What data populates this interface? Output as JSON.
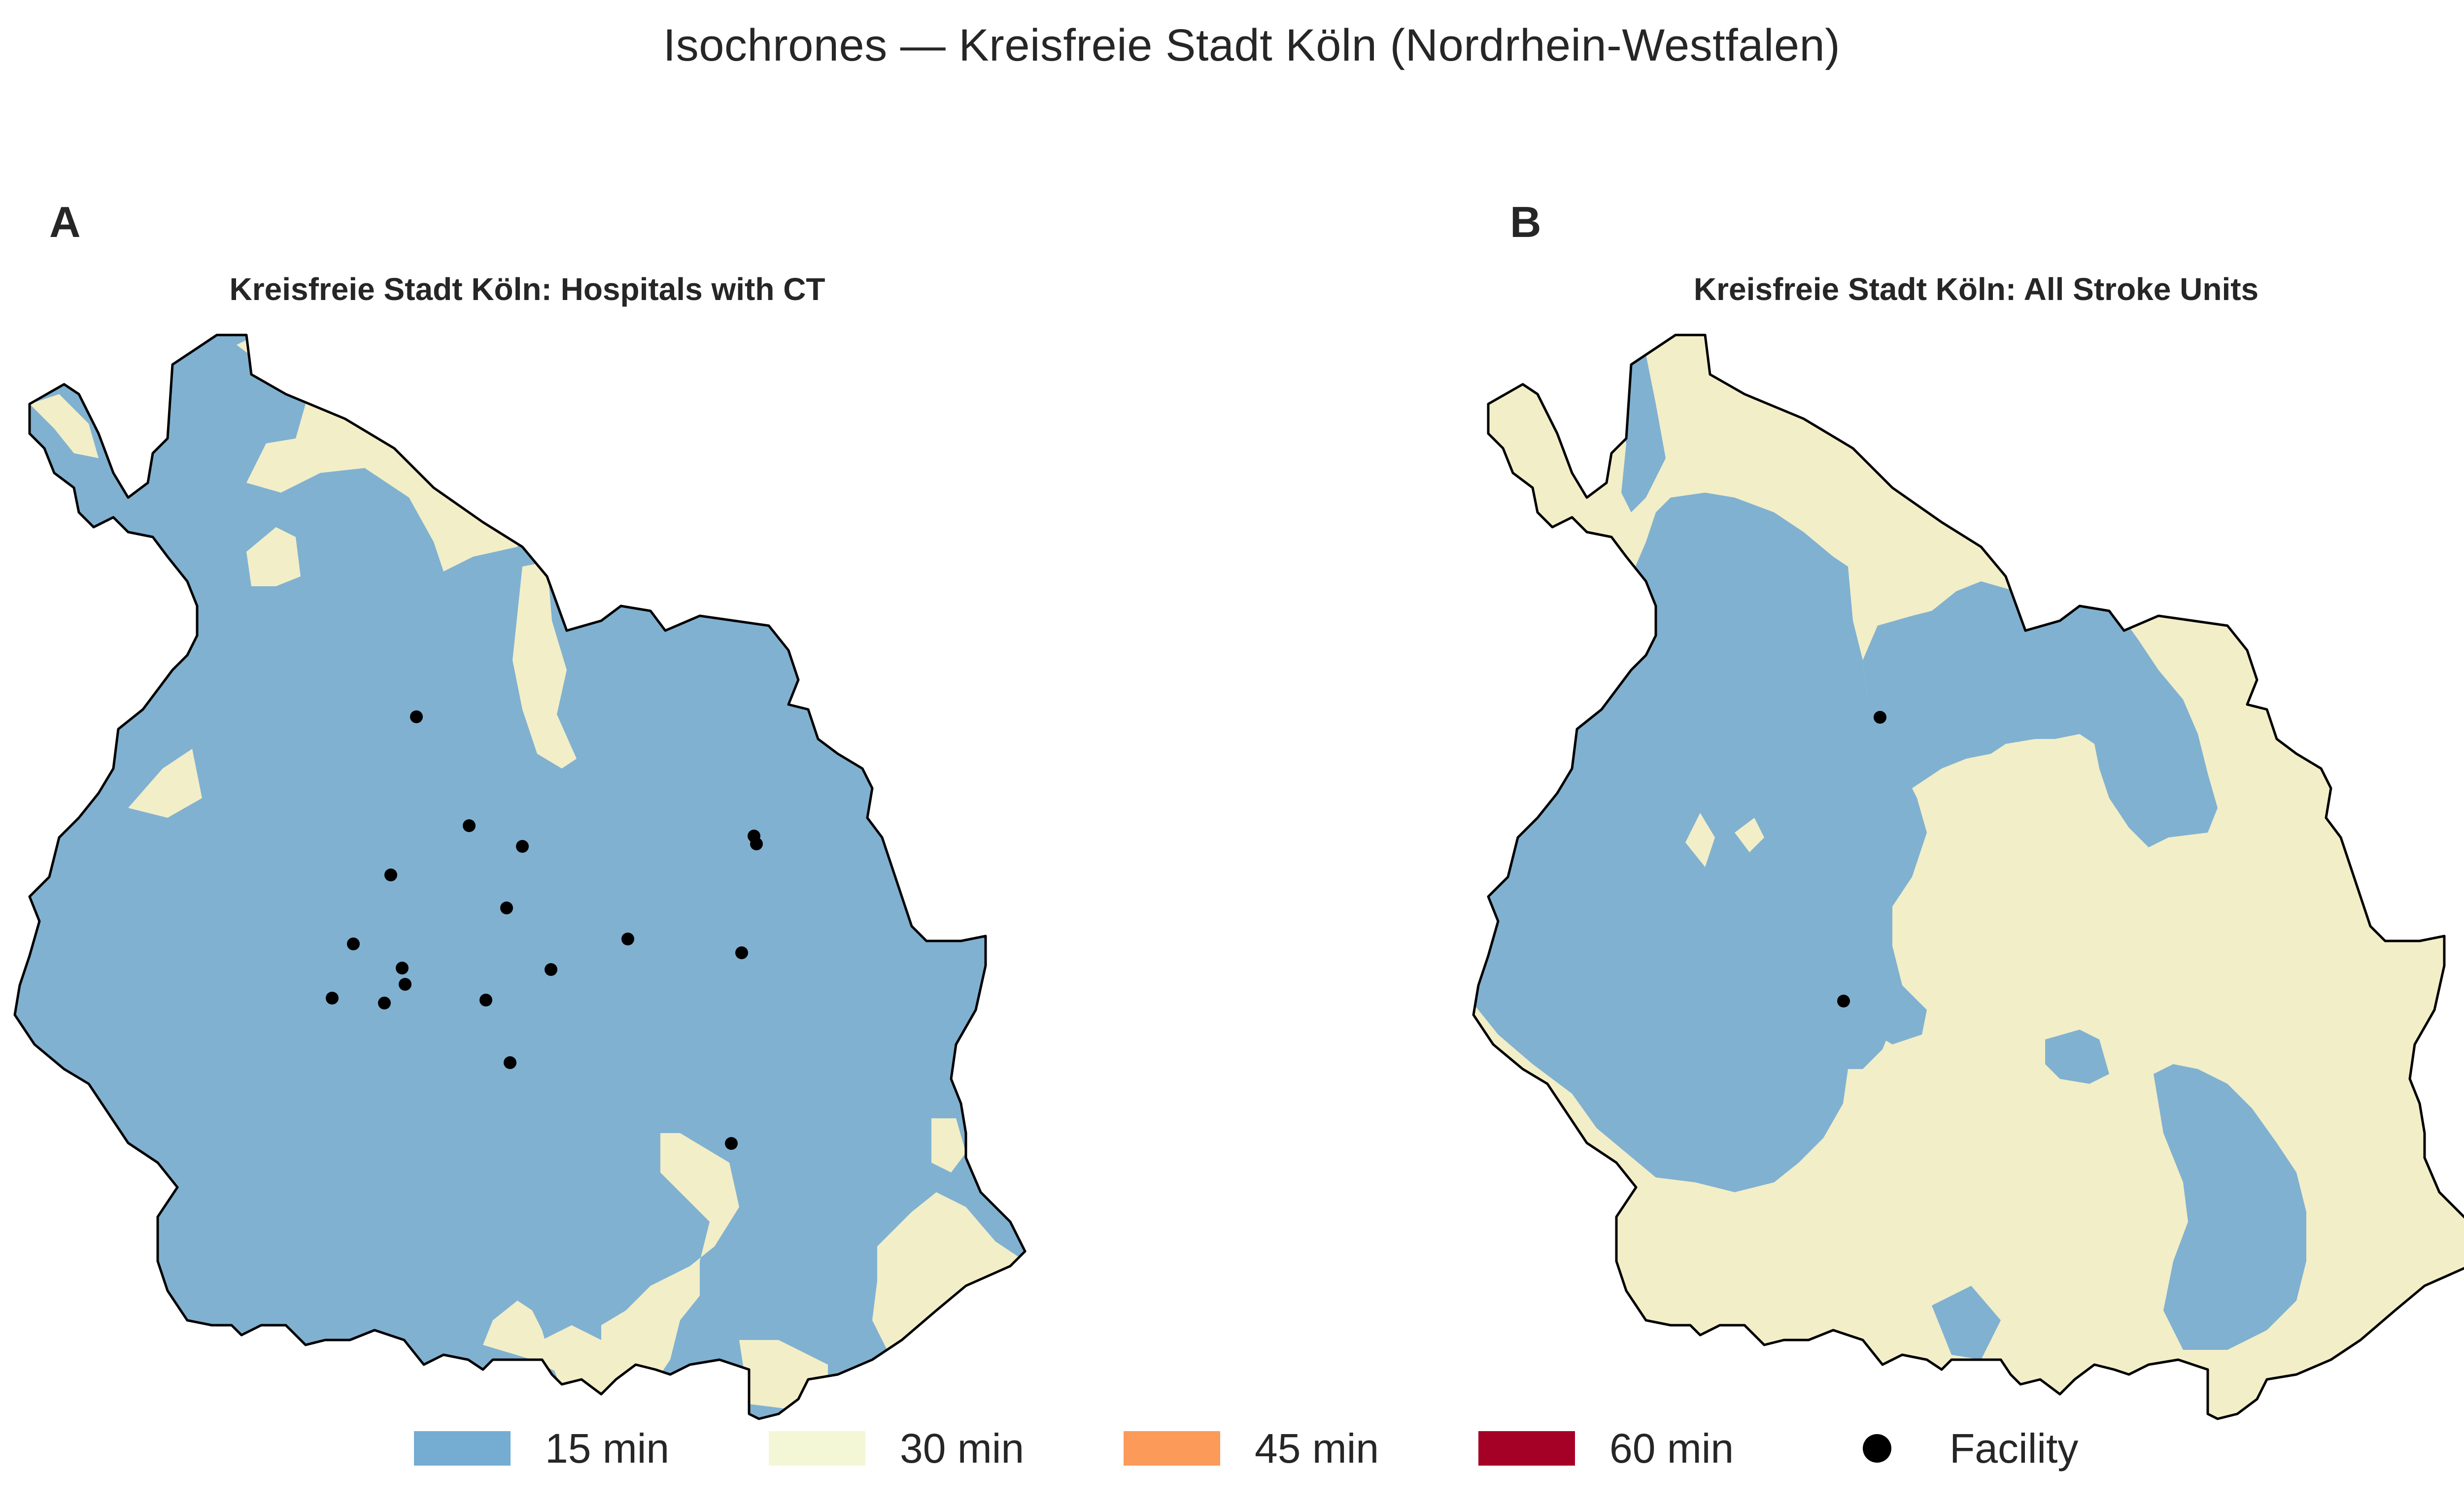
{
  "title": "Isochrones — Kreisfreie Stadt Köln (Nordrhein-Westfalen)",
  "colors": {
    "min15": "#80b1d0",
    "min30": "#f2eec8",
    "min45": "#fc9a5a",
    "min60": "#a50026",
    "facility": "#000000",
    "border": "#000000"
  },
  "panels": [
    {
      "letter": "A",
      "title": "Kreisfreie Stadt Köln: Hospitals with CT",
      "facility_count": 20
    },
    {
      "letter": "B",
      "title": "Kreisfreie Stadt Köln: All Stroke Units",
      "facility_count": 2
    }
  ],
  "legend": [
    {
      "label": "15 min",
      "color": "#74add1",
      "icon": "swatch"
    },
    {
      "label": "30 min",
      "color": "#f4f7d6",
      "icon": "swatch"
    },
    {
      "label": "45 min",
      "color": "#fc9a5a",
      "icon": "swatch"
    },
    {
      "label": "60 min",
      "color": "#a50026",
      "icon": "swatch"
    },
    {
      "label": "Facility",
      "color": "#000000",
      "icon": "circle-marker"
    }
  ]
}
